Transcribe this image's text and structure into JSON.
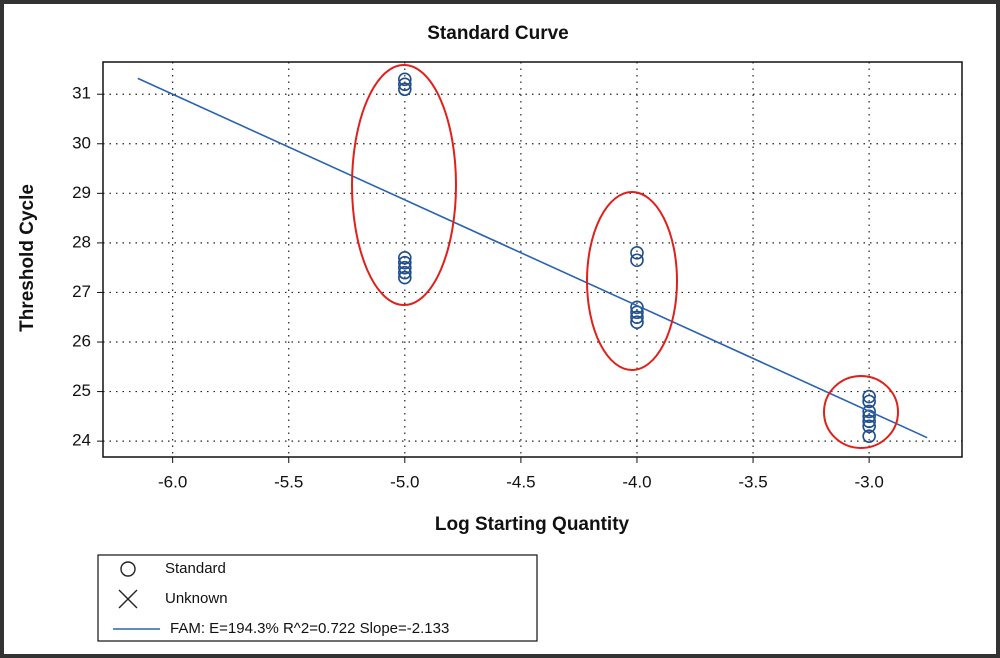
{
  "chart_data": {
    "type": "scatter",
    "title": "Standard Curve",
    "x_label": "Log Starting Quantity",
    "y_label": "Threshold Cycle",
    "xlim": [
      -6.3,
      -2.6
    ],
    "ylim": [
      23.68,
      31.65
    ],
    "xticks": [
      {
        "value": -6,
        "label": "-6.0"
      },
      {
        "value": -5.5,
        "label": "-5.5"
      },
      {
        "value": -5,
        "label": "-5.0"
      },
      {
        "value": -4.5,
        "label": "-4.5"
      },
      {
        "value": -4,
        "label": "-4.0"
      },
      {
        "value": -3.5,
        "label": "-3.5"
      },
      {
        "value": -3,
        "label": "-3.0"
      }
    ],
    "yticks": [
      24,
      25,
      26,
      27,
      28,
      29,
      30,
      31
    ],
    "grid": true,
    "series": [
      {
        "name": "Standard",
        "marker": "circle",
        "color": "#1f4e8c",
        "x": [
          -5,
          -5,
          -5,
          -5,
          -5,
          -5,
          -5,
          -5,
          -4,
          -4,
          -4,
          -4,
          -4,
          -4,
          -3,
          -3,
          -3,
          -3,
          -3,
          -3,
          -3
        ],
        "values": [
          31.3,
          31.2,
          31.1,
          27.7,
          27.6,
          27.5,
          27.4,
          27.3,
          27.8,
          27.65,
          26.7,
          26.6,
          26.5,
          26.4,
          24.9,
          24.8,
          24.6,
          24.5,
          24.4,
          24.3,
          24.1
        ]
      },
      {
        "name": "Unknown",
        "marker": "x",
        "color": "#1f4e8c",
        "x": [],
        "values": []
      },
      {
        "name": "FAM: E=194.3% R^2=0.722 Slope=-2.133",
        "marker": "line",
        "color": "#2a63b0",
        "x": [
          -6.15,
          -2.75
        ],
        "values": [
          31.32,
          24.07
        ]
      }
    ]
  }
}
